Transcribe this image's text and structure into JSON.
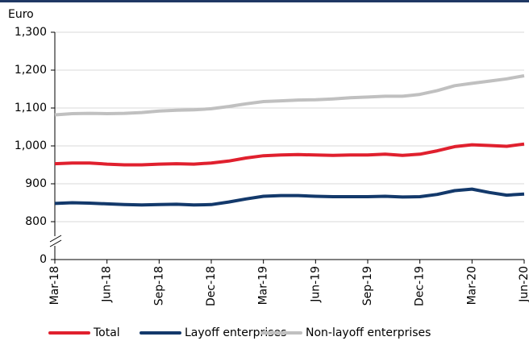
{
  "chart_data": {
    "type": "line",
    "y_axis_label": "Euro",
    "categories": [
      "Mar-18",
      null,
      null,
      "Jun-18",
      null,
      null,
      "Sep-18",
      null,
      null,
      "Dec-18",
      null,
      null,
      "Mar-19",
      null,
      null,
      "Jun-19",
      null,
      null,
      "Sep-19",
      null,
      null,
      "Dec-19",
      null,
      null,
      "Mar-20",
      null,
      null,
      "Jun-20"
    ],
    "series": [
      {
        "name": "Total",
        "color": "#e0202e",
        "values": [
          953,
          955,
          955,
          952,
          950,
          950,
          952,
          953,
          952,
          955,
          960,
          968,
          974,
          976,
          977,
          976,
          975,
          976,
          976,
          978,
          975,
          978,
          987,
          998,
          1003,
          1001,
          999,
          1005
        ]
      },
      {
        "name": "Layoff enterprises",
        "color": "#13396b",
        "values": [
          848,
          850,
          849,
          847,
          845,
          844,
          845,
          846,
          844,
          845,
          852,
          860,
          867,
          869,
          869,
          867,
          866,
          866,
          866,
          867,
          865,
          866,
          872,
          882,
          886,
          877,
          870,
          873
        ]
      },
      {
        "name": "Non-layoff enterprises",
        "color": "#c0c0c0",
        "values": [
          1082,
          1085,
          1086,
          1085,
          1086,
          1088,
          1092,
          1094,
          1095,
          1098,
          1104,
          1111,
          1117,
          1119,
          1121,
          1122,
          1124,
          1127,
          1129,
          1131,
          1131,
          1136,
          1146,
          1159,
          1165,
          1171,
          1177,
          1185
        ]
      }
    ],
    "ylim": [
      0,
      1300
    ],
    "y_break": [
      0,
      700
    ],
    "yticks": [
      0,
      800,
      900,
      {
        "value": 1000,
        "label": "1,000"
      },
      {
        "value": 1100,
        "label": "1,100"
      },
      {
        "value": 1200,
        "label": "1,200"
      },
      {
        "value": 1300,
        "label": "1,300"
      }
    ],
    "grid": true,
    "legend": "bottom"
  }
}
